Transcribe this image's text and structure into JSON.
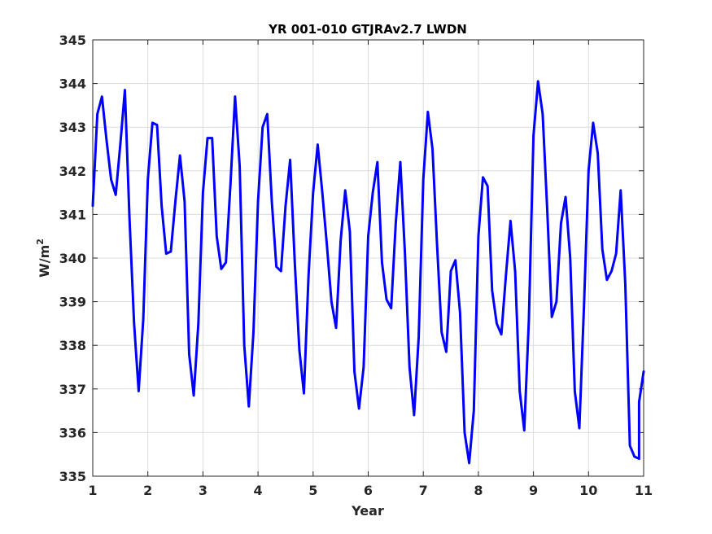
{
  "chart_data": {
    "type": "line",
    "title": "YR 001-010 GTJRAv2.7 LWDN",
    "xlabel": "Year",
    "ylabel": "W/m",
    "ylabel_superscript": "2",
    "xlim": [
      1,
      11
    ],
    "ylim": [
      335,
      345
    ],
    "xticks": [
      "1",
      "2",
      "3",
      "4",
      "5",
      "6",
      "7",
      "8",
      "9",
      "10",
      "11"
    ],
    "yticks": [
      "335",
      "336",
      "337",
      "338",
      "339",
      "340",
      "341",
      "342",
      "343",
      "344",
      "345"
    ],
    "grid": true,
    "line_color": "#0000ff",
    "series": [
      {
        "x": [
          1.0,
          1.083,
          1.167,
          1.25,
          1.333,
          1.417,
          1.5,
          1.583,
          1.667,
          1.75,
          1.833,
          1.917,
          2.0,
          2.083,
          2.167,
          2.25,
          2.333,
          2.417,
          2.5,
          2.583,
          2.667,
          2.75,
          2.833,
          2.917,
          3.0,
          3.083,
          3.167,
          3.25,
          3.333,
          3.417,
          3.5,
          3.583,
          3.667,
          3.75,
          3.833,
          3.917,
          4.0,
          4.083,
          4.167,
          4.25,
          4.333,
          4.417,
          4.5,
          4.583,
          4.667,
          4.75,
          4.833,
          4.917,
          5.0,
          5.083,
          5.167,
          5.25,
          5.333,
          5.417,
          5.5,
          5.583,
          5.667,
          5.75,
          5.833,
          5.917,
          6.0,
          6.083,
          6.167,
          6.25,
          6.333,
          6.417,
          6.5,
          6.583,
          6.667,
          6.75,
          6.833,
          6.917,
          7.0,
          7.083,
          7.167,
          7.25,
          7.333,
          7.417,
          7.5,
          7.583,
          7.667,
          7.75,
          7.833,
          7.917,
          8.0,
          8.083,
          8.167,
          8.25,
          8.333,
          8.417,
          8.5,
          8.583,
          8.667,
          8.75,
          8.833,
          8.917,
          9.0,
          9.083,
          9.167,
          9.25,
          9.333,
          9.417,
          9.5,
          9.583,
          9.667,
          9.75,
          9.833,
          9.917,
          10.0,
          10.083,
          10.167,
          10.25,
          10.333,
          10.417,
          10.5,
          10.583,
          10.667,
          10.75,
          10.833,
          10.917,
          10.917,
          11.0
        ],
        "y": [
          341.2,
          343.3,
          343.7,
          342.7,
          341.8,
          341.45,
          342.6,
          343.85,
          340.9,
          338.5,
          336.95,
          338.6,
          341.8,
          343.1,
          343.05,
          341.2,
          340.1,
          340.15,
          341.3,
          342.35,
          341.3,
          337.8,
          336.85,
          338.5,
          341.5,
          342.75,
          342.75,
          340.5,
          339.75,
          339.9,
          341.7,
          343.7,
          342.1,
          338.0,
          336.6,
          338.3,
          341.3,
          343.0,
          343.3,
          341.3,
          339.8,
          339.7,
          341.2,
          342.25,
          339.9,
          337.9,
          336.9,
          339.6,
          341.5,
          342.6,
          341.5,
          340.3,
          339.0,
          338.4,
          340.4,
          341.55,
          340.6,
          337.4,
          336.55,
          337.5,
          340.5,
          341.5,
          342.2,
          339.9,
          339.05,
          338.85,
          340.8,
          342.2,
          340.1,
          337.5,
          336.4,
          338.2,
          341.8,
          343.35,
          342.5,
          340.3,
          338.3,
          337.85,
          339.7,
          339.95,
          338.75,
          336.0,
          335.3,
          336.5,
          340.5,
          341.85,
          341.65,
          339.25,
          338.5,
          338.25,
          339.6,
          340.85,
          339.7,
          336.95,
          336.05,
          338.6,
          342.8,
          344.05,
          343.3,
          341.1,
          338.65,
          339.0,
          340.8,
          341.4,
          340.0,
          336.95,
          336.1,
          338.9,
          342.0,
          343.1,
          342.4,
          340.2,
          339.5,
          339.7,
          340.1,
          341.55,
          339.4,
          335.7,
          335.45,
          335.4,
          336.7,
          337.4
        ]
      }
    ]
  }
}
